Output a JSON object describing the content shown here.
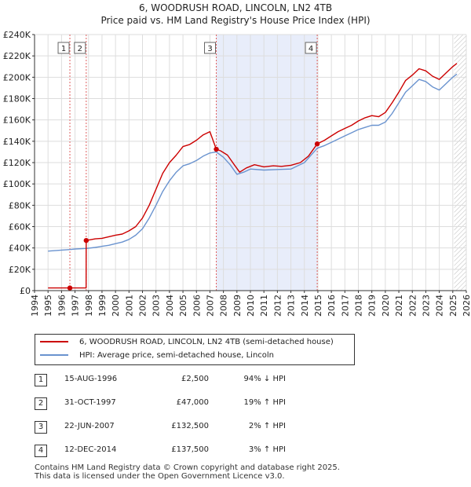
{
  "chart_data": {
    "type": "line",
    "title": "6, WOODRUSH ROAD, LINCOLN, LN2 4TB",
    "subtitle": "Price paid vs. HM Land Registry's House Price Index (HPI)",
    "xlabel": "",
    "ylabel": "",
    "xlim": [
      1994,
      2026
    ],
    "ylim": [
      0,
      240000
    ],
    "x_ticks": [
      "1994",
      "1995",
      "1996",
      "1997",
      "1998",
      "1999",
      "2000",
      "2001",
      "2002",
      "2003",
      "2004",
      "2005",
      "2006",
      "2007",
      "2008",
      "2009",
      "2010",
      "2011",
      "2012",
      "2013",
      "2014",
      "2015",
      "2016",
      "2017",
      "2018",
      "2019",
      "2020",
      "2021",
      "2022",
      "2023",
      "2024",
      "2025",
      "2026"
    ],
    "y_ticks": [
      {
        "value": 0,
        "label": "£0"
      },
      {
        "value": 20000,
        "label": "£20K"
      },
      {
        "value": 40000,
        "label": "£40K"
      },
      {
        "value": 60000,
        "label": "£60K"
      },
      {
        "value": 80000,
        "label": "£80K"
      },
      {
        "value": 100000,
        "label": "£100K"
      },
      {
        "value": 120000,
        "label": "£120K"
      },
      {
        "value": 140000,
        "label": "£140K"
      },
      {
        "value": 160000,
        "label": "£160K"
      },
      {
        "value": 180000,
        "label": "£180K"
      },
      {
        "value": 200000,
        "label": "£200K"
      },
      {
        "value": 220000,
        "label": "£220K"
      },
      {
        "value": 240000,
        "label": "£240K"
      }
    ],
    "series": [
      {
        "name": "6, WOODRUSH ROAD, LINCOLN, LN2 4TB (semi-detached house)",
        "color": "#cc0000",
        "points": [
          [
            1995.0,
            2500
          ],
          [
            1996.62,
            2500
          ],
          [
            1997.0,
            2500
          ],
          [
            1997.82,
            2500
          ],
          [
            1997.83,
            47000
          ],
          [
            1998.5,
            48500
          ],
          [
            1999.0,
            49000
          ],
          [
            1999.5,
            50500
          ],
          [
            2000.0,
            52000
          ],
          [
            2000.5,
            53000
          ],
          [
            2001.0,
            56000
          ],
          [
            2001.5,
            60000
          ],
          [
            2002.0,
            68000
          ],
          [
            2002.5,
            80000
          ],
          [
            2003.0,
            95000
          ],
          [
            2003.5,
            110000
          ],
          [
            2004.0,
            120000
          ],
          [
            2004.5,
            127000
          ],
          [
            2005.0,
            135000
          ],
          [
            2005.5,
            137000
          ],
          [
            2006.0,
            141000
          ],
          [
            2006.5,
            146000
          ],
          [
            2007.0,
            149000
          ],
          [
            2007.47,
            132500
          ],
          [
            2007.8,
            131000
          ],
          [
            2008.3,
            127000
          ],
          [
            2008.8,
            118000
          ],
          [
            2009.2,
            111000
          ],
          [
            2009.7,
            115000
          ],
          [
            2010.3,
            118000
          ],
          [
            2011.0,
            116000
          ],
          [
            2011.7,
            117000
          ],
          [
            2012.3,
            116500
          ],
          [
            2013.0,
            117500
          ],
          [
            2013.7,
            120000
          ],
          [
            2014.3,
            126000
          ],
          [
            2014.95,
            137500
          ],
          [
            2015.5,
            141000
          ],
          [
            2016.0,
            145000
          ],
          [
            2016.5,
            149000
          ],
          [
            2017.0,
            152000
          ],
          [
            2017.5,
            155000
          ],
          [
            2018.0,
            159000
          ],
          [
            2018.5,
            162000
          ],
          [
            2019.0,
            164000
          ],
          [
            2019.5,
            163000
          ],
          [
            2020.0,
            167000
          ],
          [
            2020.5,
            176000
          ],
          [
            2021.0,
            186000
          ],
          [
            2021.5,
            197000
          ],
          [
            2022.0,
            202000
          ],
          [
            2022.5,
            208000
          ],
          [
            2023.0,
            206000
          ],
          [
            2023.5,
            201000
          ],
          [
            2024.0,
            198000
          ],
          [
            2024.5,
            204000
          ],
          [
            2025.0,
            210000
          ],
          [
            2025.3,
            213000
          ]
        ]
      },
      {
        "name": "HPI: Average price, semi-detached house, Lincoln",
        "color": "#6a93cf",
        "points": [
          [
            1995.0,
            37000
          ],
          [
            1995.5,
            37500
          ],
          [
            1996.0,
            38000
          ],
          [
            1996.62,
            38500
          ],
          [
            1997.0,
            39000
          ],
          [
            1997.83,
            39500
          ],
          [
            1998.5,
            40500
          ],
          [
            1999.0,
            41500
          ],
          [
            1999.5,
            42500
          ],
          [
            2000.0,
            44000
          ],
          [
            2000.5,
            45500
          ],
          [
            2001.0,
            48000
          ],
          [
            2001.5,
            52000
          ],
          [
            2002.0,
            58000
          ],
          [
            2002.5,
            68000
          ],
          [
            2003.0,
            80000
          ],
          [
            2003.5,
            93000
          ],
          [
            2004.0,
            103000
          ],
          [
            2004.5,
            111000
          ],
          [
            2005.0,
            117000
          ],
          [
            2005.5,
            119000
          ],
          [
            2006.0,
            122000
          ],
          [
            2006.5,
            126000
          ],
          [
            2007.0,
            129000
          ],
          [
            2007.47,
            130000
          ],
          [
            2008.0,
            125000
          ],
          [
            2008.5,
            118000
          ],
          [
            2009.0,
            109000
          ],
          [
            2009.5,
            111000
          ],
          [
            2010.0,
            114000
          ],
          [
            2011.0,
            113000
          ],
          [
            2012.0,
            113500
          ],
          [
            2013.0,
            114000
          ],
          [
            2014.0,
            120000
          ],
          [
            2014.95,
            133500
          ],
          [
            2015.5,
            136000
          ],
          [
            2016.0,
            139000
          ],
          [
            2016.5,
            142000
          ],
          [
            2017.0,
            145000
          ],
          [
            2017.5,
            148000
          ],
          [
            2018.0,
            151000
          ],
          [
            2018.5,
            153000
          ],
          [
            2019.0,
            155000
          ],
          [
            2019.5,
            155000
          ],
          [
            2020.0,
            158000
          ],
          [
            2020.5,
            166000
          ],
          [
            2021.0,
            176000
          ],
          [
            2021.5,
            186000
          ],
          [
            2022.0,
            192000
          ],
          [
            2022.5,
            198000
          ],
          [
            2023.0,
            196000
          ],
          [
            2023.5,
            191000
          ],
          [
            2024.0,
            188000
          ],
          [
            2024.5,
            194000
          ],
          [
            2025.0,
            200000
          ],
          [
            2025.3,
            203000
          ]
        ]
      }
    ],
    "shaded_ranges": [
      [
        2007.47,
        2014.95
      ]
    ],
    "markers": [
      {
        "label": "1",
        "x": 1996.62,
        "y": 2500
      },
      {
        "label": "2",
        "x": 1997.83,
        "y": 47000
      },
      {
        "label": "3",
        "x": 2007.47,
        "y": 132500
      },
      {
        "label": "4",
        "x": 2014.95,
        "y": 137500
      }
    ],
    "hatched_from": 2025.1
  },
  "legend": {
    "property_label": "6, WOODRUSH ROAD, LINCOLN, LN2 4TB (semi-detached house)",
    "hpi_label": "HPI: Average price, semi-detached house, Lincoln",
    "property_color": "#cc0000",
    "hpi_color": "#6a93cf"
  },
  "transactions": [
    {
      "num": "1",
      "date": "15-AUG-1996",
      "price": "£2,500",
      "hpi": "94% ↓ HPI"
    },
    {
      "num": "2",
      "date": "31-OCT-1997",
      "price": "£47,000",
      "hpi": "19% ↑ HPI"
    },
    {
      "num": "3",
      "date": "22-JUN-2007",
      "price": "£132,500",
      "hpi": "2% ↑ HPI"
    },
    {
      "num": "4",
      "date": "12-DEC-2014",
      "price": "£137,500",
      "hpi": "3% ↑ HPI"
    }
  ],
  "footer": {
    "line1": "Contains HM Land Registry data © Crown copyright and database right 2025.",
    "line2": "This data is licensed under the Open Government Licence v3.0."
  }
}
